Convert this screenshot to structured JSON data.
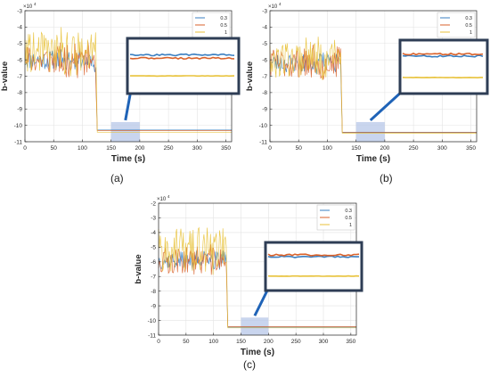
{
  "chart_data": [
    {
      "type": "line",
      "panel_label": "(a)",
      "xlabel": "Time (s)",
      "ylabel": "b-value",
      "exponent_label": "×10",
      "exponent_power": "4",
      "xlim": [
        0,
        360
      ],
      "ylim": [
        -11,
        -3
      ],
      "xticks": [
        0,
        50,
        100,
        150,
        200,
        250,
        300,
        350
      ],
      "yticks": [
        -11,
        -10,
        -9,
        -8,
        -7,
        -6,
        -5,
        -4,
        -3
      ],
      "grid": true,
      "legend_position": "top-right",
      "step_time": 123,
      "series": [
        {
          "name": "0.3",
          "color": "#3a7fc1",
          "noisy_mean": -6.0,
          "noisy_amp": 0.6,
          "steady": -10.28
        },
        {
          "name": "0.5",
          "color": "#d9622b",
          "noisy_mean": -6.0,
          "noisy_amp": 0.9,
          "steady": -10.32
        },
        {
          "name": "1",
          "color": "#e8c23a",
          "noisy_mean": -5.6,
          "noisy_amp": 1.3,
          "steady": -10.42
        }
      ],
      "highlight_x": [
        150,
        200
      ]
    },
    {
      "type": "line",
      "panel_label": "(b)",
      "xlabel": "Time (s)",
      "ylabel": "b-value",
      "exponent_label": "×10",
      "exponent_power": "4",
      "xlim": [
        0,
        360
      ],
      "ylim": [
        -11,
        -3
      ],
      "xticks": [
        0,
        50,
        100,
        150,
        200,
        250,
        300,
        350
      ],
      "yticks": [
        -11,
        -10,
        -9,
        -8,
        -7,
        -6,
        -5,
        -4,
        -3
      ],
      "grid": true,
      "legend_position": "top-right",
      "step_time": 123,
      "series": [
        {
          "name": "0.3",
          "color": "#3a7fc1",
          "noisy_mean": -6.2,
          "noisy_amp": 0.6,
          "steady": -10.45
        },
        {
          "name": "0.5",
          "color": "#d9622b",
          "noisy_mean": -6.2,
          "noisy_amp": 0.9,
          "steady": -10.42
        },
        {
          "name": "1",
          "color": "#e8c23a",
          "noisy_mean": -5.9,
          "noisy_amp": 1.2,
          "steady": -10.48
        }
      ],
      "highlight_x": [
        150,
        200
      ]
    },
    {
      "type": "line",
      "panel_label": "(c)",
      "xlabel": "Time (s)",
      "ylabel": "b-value",
      "exponent_label": "×10",
      "exponent_power": "4",
      "xlim": [
        0,
        360
      ],
      "ylim": [
        -11,
        -2
      ],
      "xticks": [
        0,
        50,
        100,
        150,
        200,
        250,
        300,
        350
      ],
      "yticks": [
        -11,
        -10,
        -9,
        -8,
        -7,
        -6,
        -5,
        -4,
        -3,
        -2
      ],
      "grid": true,
      "legend_position": "top-right",
      "step_time": 123,
      "series": [
        {
          "name": "0.3",
          "color": "#3a7fc1",
          "noisy_mean": -5.9,
          "noisy_amp": 0.6,
          "steady": -10.45
        },
        {
          "name": "0.5",
          "color": "#d9622b",
          "noisy_mean": -5.9,
          "noisy_amp": 0.9,
          "steady": -10.42
        },
        {
          "name": "1",
          "color": "#e8c23a",
          "noisy_mean": -5.2,
          "noisy_amp": 1.5,
          "steady": -10.5
        }
      ],
      "highlight_x": [
        150,
        200
      ]
    }
  ]
}
